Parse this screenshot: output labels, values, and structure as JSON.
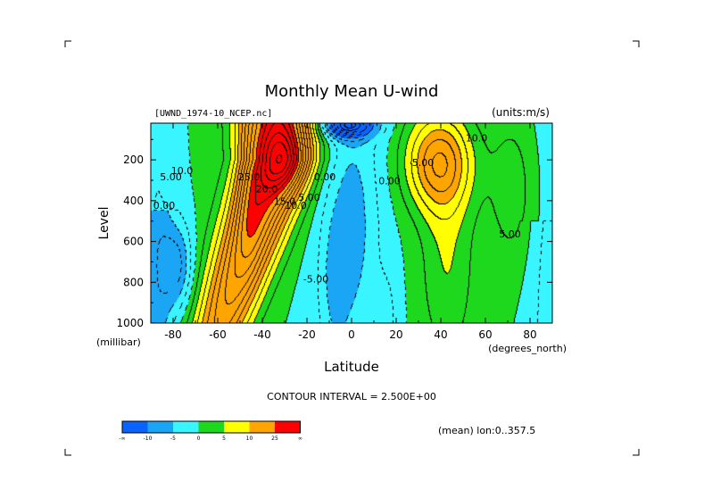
{
  "chart_data": {
    "type": "heatmap",
    "title": "Monthly Mean U-wind",
    "dataset": "[UWND_1974-10_NCEP.nc]",
    "units": "(units:m/s)",
    "xlabel": "Latitude",
    "xunits": "(degrees_north)",
    "ylabel": "Level",
    "yunits": "(millibar)",
    "xlim": [
      -90,
      90
    ],
    "ylim": [
      1000,
      20
    ],
    "x_ticks": [
      -80,
      -60,
      -40,
      -20,
      0,
      20,
      40,
      60,
      80
    ],
    "x_tick_labels": [
      "-80",
      "-60",
      "-40",
      "-20",
      "0",
      "20",
      "40",
      "60",
      "80"
    ],
    "y_ticks": [
      200,
      400,
      600,
      800,
      1000
    ],
    "y_tick_labels": [
      "200",
      "400",
      "600",
      "800",
      "1000"
    ],
    "contour_interval_text": "CONTOUR INTERVAL = 2.500E+00",
    "contour_interval": 2.5,
    "footer_note": "(mean) lon:0..357.5",
    "contour_labels": [
      {
        "text": "25.0",
        "x": -46,
        "y": 300
      },
      {
        "text": "20.0",
        "x": -38,
        "y": 360
      },
      {
        "text": "15.0",
        "x": -30,
        "y": 420
      },
      {
        "text": "10.0",
        "x": -25,
        "y": 440
      },
      {
        "text": "5.00",
        "x": -19,
        "y": 400
      },
      {
        "text": "0.00",
        "x": -12,
        "y": 300
      },
      {
        "text": "10.0",
        "x": -76,
        "y": 270
      },
      {
        "text": "5.00",
        "x": -81,
        "y": 300
      },
      {
        "text": "0.00",
        "x": -84,
        "y": 440
      },
      {
        "text": "-5.00",
        "x": -16,
        "y": 800
      },
      {
        "text": "0.00",
        "x": 17,
        "y": 320
      },
      {
        "text": "10.0",
        "x": 56,
        "y": 110
      },
      {
        "text": "5.00",
        "x": 32,
        "y": 230
      },
      {
        "text": "5.00",
        "x": 71,
        "y": 580
      }
    ],
    "field_features": [
      {
        "lat": -31,
        "p": 200,
        "amp": 10,
        "slat": 11,
        "sp": 150
      },
      {
        "lat": -46,
        "p": 300,
        "amp": 4,
        "slat": 6,
        "sp": 380
      },
      {
        "lat": 39,
        "p": 210,
        "amp": 14,
        "slat": 15,
        "sp": 240
      },
      {
        "lat": 43,
        "p": 700,
        "amp": 5,
        "slat": 12,
        "sp": 500
      },
      {
        "lat": -8,
        "p": 800,
        "amp": -3,
        "slat": 6,
        "sp": 320
      },
      {
        "lat": 15,
        "p": 960,
        "amp": -3,
        "slat": 5,
        "sp": 180
      },
      {
        "lat": -1,
        "p": 30,
        "amp": -20,
        "slat": 11,
        "sp": 60
      },
      {
        "lat": 0,
        "p": 520,
        "amp": -3,
        "slat": 10,
        "sp": 400
      },
      {
        "lat": -78,
        "p": 720,
        "amp": -8,
        "slat": 7,
        "sp": 220
      }
    ],
    "colorbar": {
      "labels": [
        "-∞",
        "-10",
        "-5",
        "0",
        "5",
        "10",
        "25",
        "∞"
      ],
      "colors": [
        "#0a63ff",
        "#1aa5f5",
        "#38f5ff",
        "#1ed81e",
        "#ffff00",
        "#ffa500",
        "#ff0000"
      ]
    }
  }
}
